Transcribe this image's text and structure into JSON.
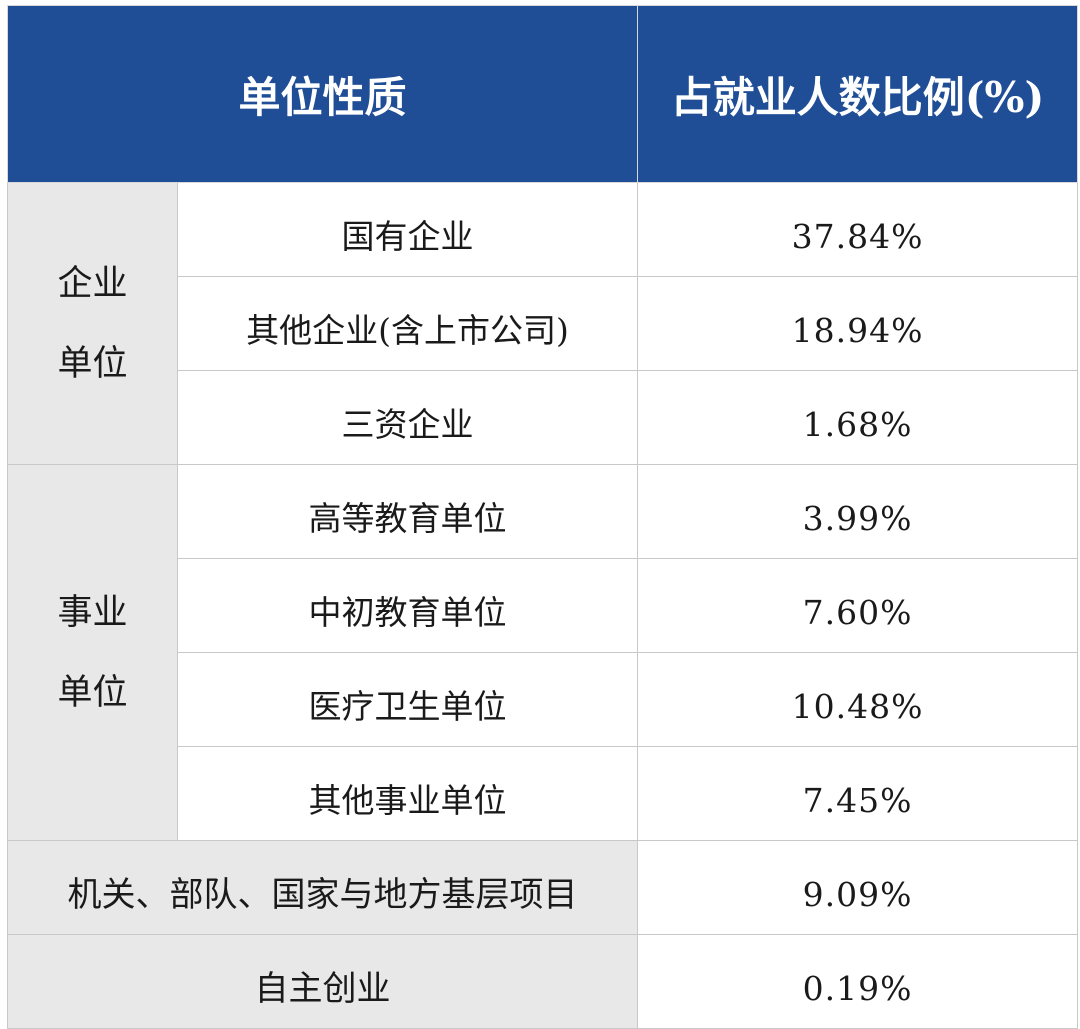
{
  "header": {
    "col1": "单位性质",
    "col2": "占就业人数比例(%)"
  },
  "groups": [
    {
      "label_line1": "企业",
      "label_line2": "单位",
      "rows": [
        {
          "name": "国有企业",
          "value": "37.84%"
        },
        {
          "name": "其他企业(含上市公司)",
          "value": "18.94%"
        },
        {
          "name": "三资企业",
          "value": "1.68%"
        }
      ]
    },
    {
      "label_line1": "事业",
      "label_line2": "单位",
      "rows": [
        {
          "name": "高等教育单位",
          "value": "3.99%"
        },
        {
          "name": "中初教育单位",
          "value": "7.60%"
        },
        {
          "name": "医疗卫生单位",
          "value": "10.48%"
        },
        {
          "name": "其他事业单位",
          "value": "7.45%"
        }
      ]
    }
  ],
  "single_rows": [
    {
      "name": "机关、部队、国家与地方基层项目",
      "value": "9.09%"
    },
    {
      "name": "自主创业",
      "value": "0.19%"
    }
  ]
}
